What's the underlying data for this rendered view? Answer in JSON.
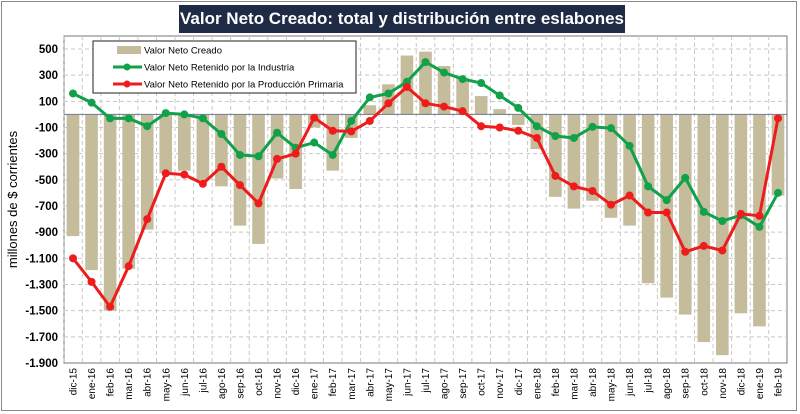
{
  "chart_data": {
    "type": "bar",
    "title": "Valor Neto Creado: total y distribución entre eslabones",
    "xlabel": "",
    "ylabel": "millones de $ corrientes",
    "ylim": [
      -1900,
      500
    ],
    "yticks": [
      500,
      300,
      100,
      -100,
      -300,
      -500,
      -700,
      -900,
      -1100,
      -1300,
      -1500,
      -1700,
      -1900
    ],
    "ytick_labels": [
      "500",
      "300",
      "100",
      "-100",
      "-300",
      "-500",
      "-700",
      "-900",
      "-1.100",
      "-1.300",
      "-1.500",
      "-1.700",
      "-1.900"
    ],
    "grid": true,
    "legend_position": "top-left",
    "categories": [
      "dic-15",
      "ene-16",
      "feb-16",
      "mar-16",
      "abr-16",
      "may-16",
      "jun-16",
      "jul-16",
      "ago-16",
      "sep-16",
      "oct-16",
      "nov-16",
      "dic-16",
      "ene-17",
      "feb-17",
      "mar-17",
      "abr-17",
      "may-17",
      "jun-17",
      "jul-17",
      "ago-17",
      "sep-17",
      "oct-17",
      "nov-17",
      "dic-17",
      "ene-18",
      "feb-18",
      "mar-18",
      "abr-18",
      "may-18",
      "jun-18",
      "jul-18",
      "ago-18",
      "sep-18",
      "oct-18",
      "nov-18",
      "dic-18",
      "ene-19",
      "feb-19"
    ],
    "series": [
      {
        "name": "Valor Neto Creado",
        "kind": "bar",
        "color": "#c4bc9a",
        "values": [
          -930,
          -1190,
          -1500,
          -1180,
          -880,
          -450,
          -430,
          -500,
          -550,
          -850,
          -990,
          -490,
          -570,
          -100,
          -430,
          -180,
          70,
          230,
          450,
          480,
          370,
          280,
          140,
          40,
          -80,
          -265,
          -630,
          -720,
          -660,
          -790,
          -850,
          -1290,
          -1400,
          -1530,
          -1740,
          -1840,
          -1520,
          -1620,
          -620
        ]
      },
      {
        "name": "Valor Neto Retenido por la Industria",
        "kind": "line",
        "color": "#12a14b",
        "values": [
          160,
          90,
          -30,
          -30,
          -90,
          10,
          0,
          -30,
          -150,
          -310,
          -320,
          -140,
          -255,
          -215,
          -310,
          -50,
          130,
          160,
          250,
          400,
          320,
          270,
          240,
          145,
          50,
          -90,
          -165,
          -180,
          -95,
          -105,
          -240,
          -550,
          -655,
          -485,
          -745,
          -815,
          -770,
          -860,
          -600
        ]
      },
      {
        "name": "Valor Neto Retenido por la Producción Primaria",
        "kind": "line",
        "color": "#ee1c1c",
        "values": [
          -1100,
          -1280,
          -1470,
          -1160,
          -800,
          -450,
          -460,
          -530,
          -400,
          -540,
          -680,
          -340,
          -300,
          -25,
          -125,
          -130,
          -50,
          85,
          210,
          85,
          60,
          25,
          -90,
          -100,
          -125,
          -180,
          -470,
          -550,
          -585,
          -690,
          -620,
          -750,
          -750,
          -1050,
          -1005,
          -1040,
          -760,
          -775,
          -30
        ]
      }
    ]
  }
}
